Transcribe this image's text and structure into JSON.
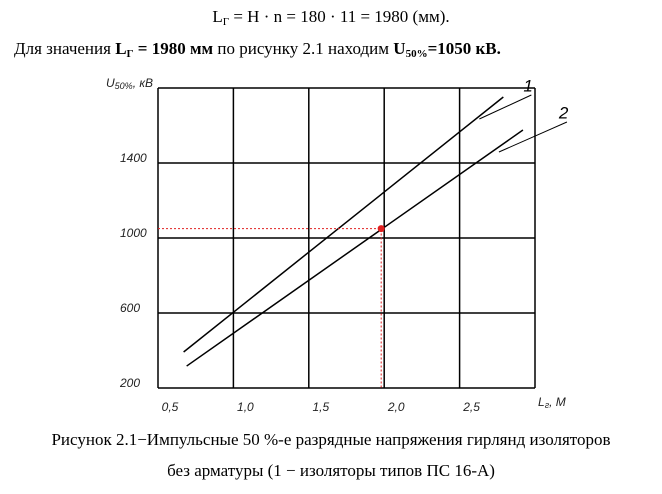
{
  "formula": {
    "symbol": "L",
    "sub": "Г",
    "rest": " = H · n = 180 · 11 = 1980 (мм)."
  },
  "sentence": {
    "start": "Для значения ",
    "symbol": "L",
    "sub": "Г",
    "value": " = 1980 мм",
    "middle": " по рисунку 2.1 находим ",
    "u": "U",
    "u_sub": "50%",
    "result": "=1050 кВ."
  },
  "caption": [
    "Рисунок 2.1−Импульсные 50 %-е разрядные напряжения гирлянд изоляторов",
    "без арматуры (1 − изоляторы типов ПС 16-А)"
  ],
  "chart_data": {
    "type": "line",
    "y_label": {
      "symbol": "U",
      "sub": "50%",
      "rest": ", кВ"
    },
    "x_label": {
      "symbol": "L",
      "sub": "г",
      "rest": ", М"
    },
    "xlim": [
      0.5,
      3.0
    ],
    "ylim": [
      200,
      1800
    ],
    "xticks": [
      {
        "value": 0.5,
        "label": "0,5"
      },
      {
        "value": 1.0,
        "label": "1,0"
      },
      {
        "value": 1.5,
        "label": "1,5"
      },
      {
        "value": 2.0,
        "label": "2,0"
      },
      {
        "value": 2.5,
        "label": "2,5"
      },
      {
        "value": 3.0,
        "label": ""
      }
    ],
    "yticks": [
      200,
      600,
      1000,
      1400,
      {
        "value": 1800,
        "label": ""
      }
    ],
    "grid": true,
    "series": [
      {
        "name": "1",
        "color": "#000000",
        "x": [
          0.67,
          2.79
        ],
        "values": [
          392,
          1752
        ]
      },
      {
        "name": "2",
        "color": "#000000",
        "x": [
          0.69,
          2.92
        ],
        "values": [
          317,
          1576
        ]
      }
    ],
    "point": {
      "x": 1.98,
      "y": 1050,
      "color": "#e02020"
    }
  }
}
